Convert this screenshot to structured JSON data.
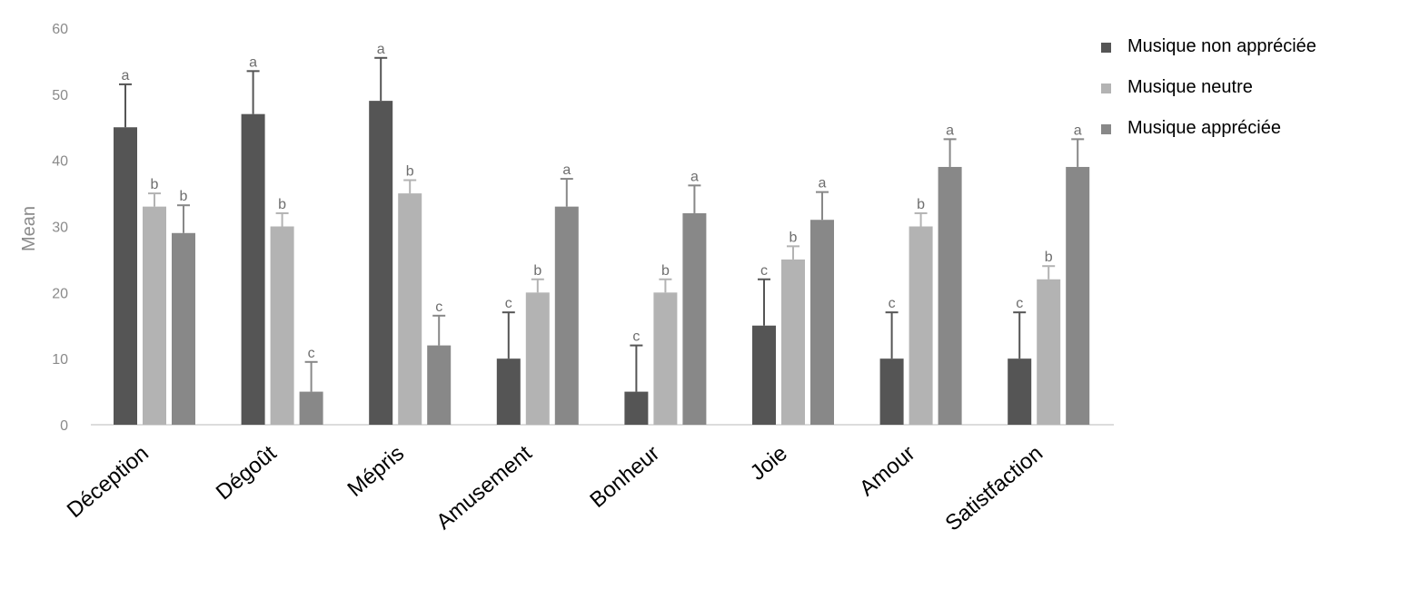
{
  "chart_data": {
    "type": "bar",
    "ylabel": "Mean",
    "ylim": [
      0,
      60
    ],
    "yticks": [
      0,
      10,
      20,
      30,
      40,
      50,
      60
    ],
    "grid": false,
    "legend_position": "top-right",
    "categories": [
      "Déception",
      "Dégoût",
      "Mépris",
      "Amusement",
      "Bonheur",
      "Joie",
      "Amour",
      "Satistfaction"
    ],
    "series": [
      {
        "name": "Musique non appréciée",
        "color": "#555555",
        "values": [
          45,
          47,
          49,
          10,
          5,
          15,
          10,
          10
        ],
        "errors": [
          6.5,
          6.5,
          6.5,
          7,
          7,
          7,
          7,
          7
        ],
        "labels": [
          "a",
          "a",
          "a",
          "c",
          "c",
          "c",
          "c",
          "c"
        ]
      },
      {
        "name": "Musique neutre",
        "color": "#b3b3b3",
        "values": [
          33,
          30,
          35,
          20,
          20,
          25,
          30,
          22
        ],
        "errors": [
          2,
          2,
          2,
          2,
          2,
          2,
          2,
          2
        ],
        "labels": [
          "b",
          "b",
          "b",
          "b",
          "b",
          "b",
          "b",
          "b"
        ]
      },
      {
        "name": "Musique appréciée",
        "color": "#888888",
        "values": [
          29,
          5,
          12,
          33,
          32,
          31,
          39,
          39
        ],
        "errors": [
          4.2,
          4.5,
          4.5,
          4.2,
          4.2,
          4.2,
          4.2,
          4.2
        ],
        "labels": [
          "b",
          "c",
          "c",
          "a",
          "a",
          "a",
          "a",
          "a"
        ]
      }
    ]
  }
}
